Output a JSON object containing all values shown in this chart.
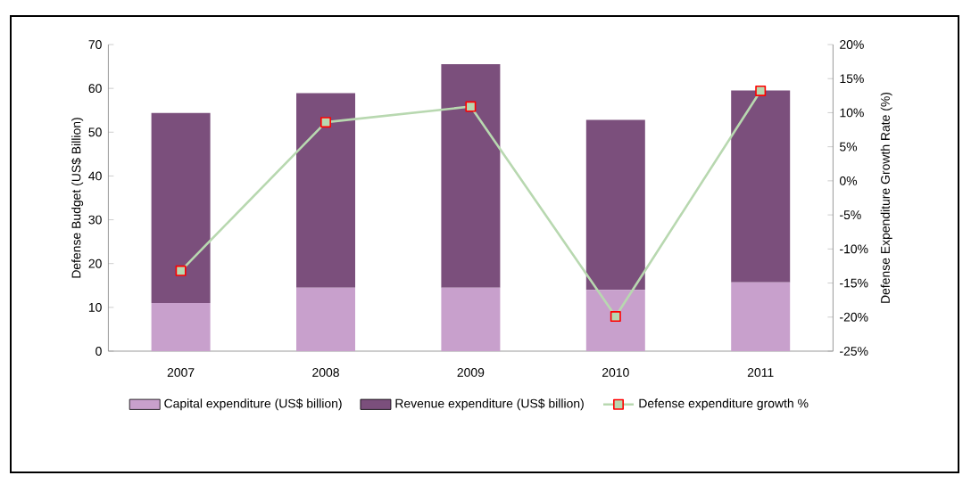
{
  "chart_data": {
    "type": "bar",
    "stacked": true,
    "legend": "bottom",
    "marker": "square",
    "categories": [
      "2007",
      "2008",
      "2009",
      "2010",
      "2011"
    ],
    "ylabel": "Defense Budget (US$ Billion)",
    "y2label": "Defense Expenditure Growth Rate (%)",
    "ylim": [
      0,
      70
    ],
    "yticks": [
      0,
      10,
      20,
      30,
      40,
      50,
      60,
      70
    ],
    "y2lim": [
      -25,
      20
    ],
    "y2ticks": [
      {
        "value": -25,
        "label": "-25%"
      },
      {
        "value": -20,
        "label": "-20%"
      },
      {
        "value": -15,
        "label": "-15%"
      },
      {
        "value": -10,
        "label": "-10%"
      },
      {
        "value": -5,
        "label": "-5%"
      },
      {
        "value": 0,
        "label": "0%"
      },
      {
        "value": 5,
        "label": "5%"
      },
      {
        "value": 10,
        "label": "10%"
      },
      {
        "value": 15,
        "label": "15%"
      },
      {
        "value": 20,
        "label": "20%"
      }
    ],
    "series": [
      {
        "name": "Capital expenditure (US$ billion)",
        "color": "#c8a0cc",
        "values": [
          11.0,
          14.5,
          14.5,
          14.0,
          15.7
        ]
      },
      {
        "name": "Revenue expenditure (US$ billion)",
        "color": "#7b4f7c",
        "values": [
          43.4,
          44.4,
          51.0,
          38.8,
          43.8
        ]
      },
      {
        "name": "Defense expenditure growth %",
        "type": "line",
        "axis": "y2",
        "color": "#b8d8b0",
        "values": [
          -13.2,
          8.6,
          10.9,
          -19.9,
          13.2
        ]
      }
    ]
  }
}
